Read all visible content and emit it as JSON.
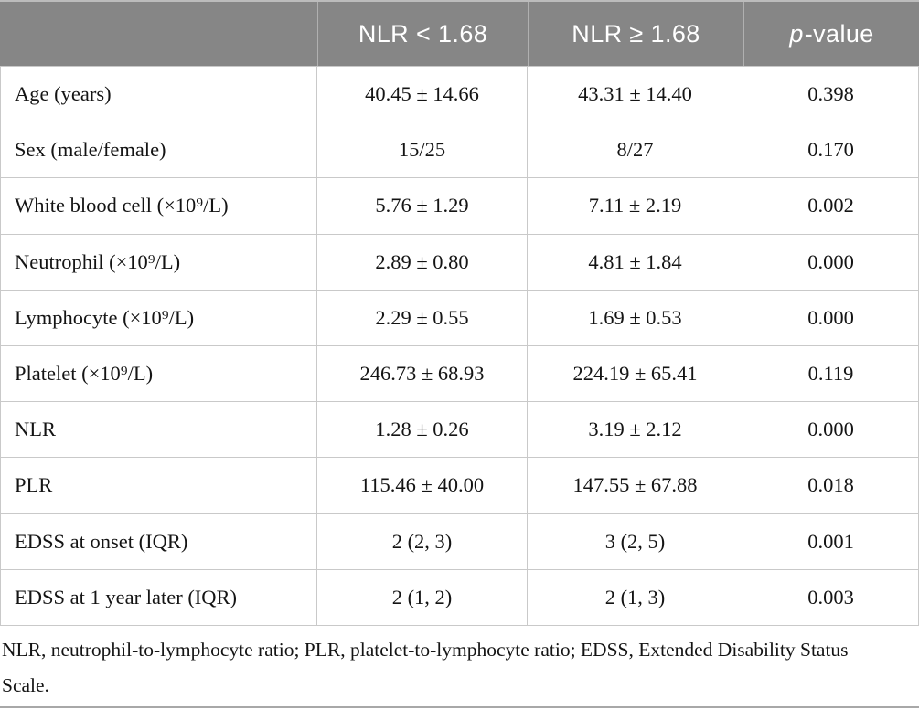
{
  "colors": {
    "header_bg": "#868686",
    "header_text": "#ffffff",
    "grid_line": "#c9c9c9",
    "body_text": "#141414"
  },
  "table": {
    "header": {
      "group_col": "",
      "nlr_low": "NLR < 1.68",
      "nlr_high": "NLR ≥ 1.68",
      "pvalue_italic": "p",
      "pvalue_rest": "-value"
    },
    "rows": [
      {
        "label": "Age (years)",
        "low": "40.45 ± 14.66",
        "high": "43.31 ± 14.40",
        "p": "0.398"
      },
      {
        "label": "Sex (male/female)",
        "low": "15/25",
        "high": "8/27",
        "p": "0.170"
      },
      {
        "label": "White blood cell (×10⁹/L)",
        "low": "5.76 ± 1.29",
        "high": "7.11 ± 2.19",
        "p": "0.002"
      },
      {
        "label": "Neutrophil (×10⁹/L)",
        "low": "2.89 ± 0.80",
        "high": "4.81 ± 1.84",
        "p": "0.000"
      },
      {
        "label": "Lymphocyte (×10⁹/L)",
        "low": "2.29 ± 0.55",
        "high": "1.69 ± 0.53",
        "p": "0.000"
      },
      {
        "label": "Platelet (×10⁹/L)",
        "low": "246.73 ± 68.93",
        "high": "224.19 ± 65.41",
        "p": "0.119"
      },
      {
        "label": "NLR",
        "low": "1.28 ± 0.26",
        "high": "3.19 ± 2.12",
        "p": "0.000"
      },
      {
        "label": "PLR",
        "low": "115.46 ± 40.00",
        "high": "147.55 ± 67.88",
        "p": "0.018"
      },
      {
        "label": "EDSS at onset (IQR)",
        "low": "2 (2, 3)",
        "high": "3 (2, 5)",
        "p": "0.001"
      },
      {
        "label": "EDSS at 1 year later (IQR)",
        "low": "2 (1, 2)",
        "high": "2 (1, 3)",
        "p": "0.003"
      }
    ]
  },
  "footnote": "NLR, neutrophil-to-lymphocyte ratio; PLR, platelet-to-lymphocyte ratio; EDSS, Extended Disability Status Scale."
}
